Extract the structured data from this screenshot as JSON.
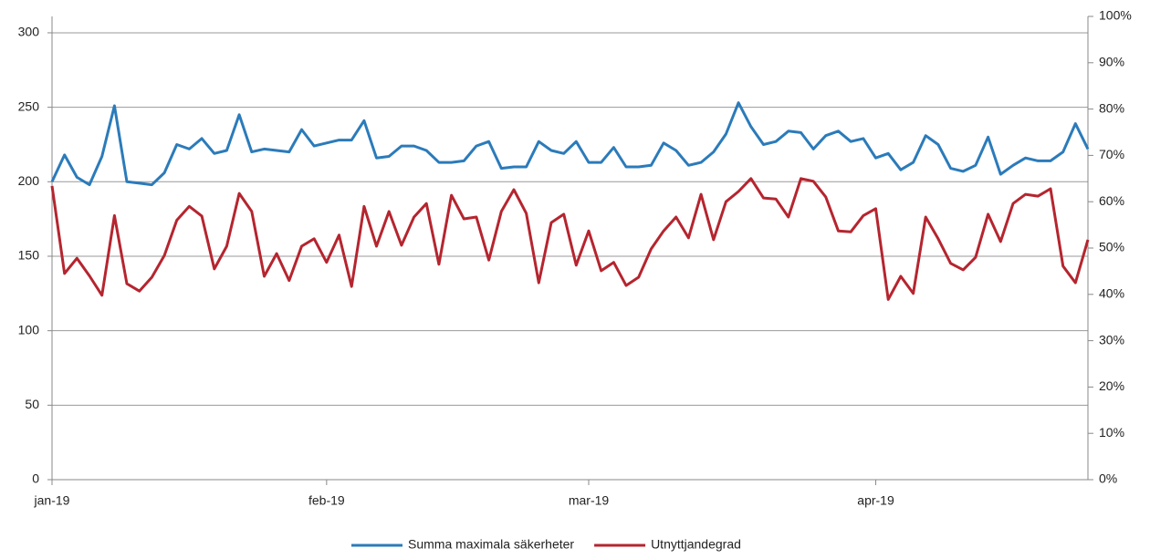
{
  "chart_data": {
    "type": "line",
    "categories": [
      "jan-19",
      null,
      null,
      null,
      null,
      null,
      null,
      null,
      null,
      null,
      null,
      null,
      null,
      null,
      null,
      null,
      null,
      null,
      null,
      null,
      null,
      null,
      "feb-19",
      null,
      null,
      null,
      null,
      null,
      null,
      null,
      null,
      null,
      null,
      null,
      null,
      null,
      null,
      null,
      null,
      null,
      null,
      null,
      null,
      "mar-19",
      null,
      null,
      null,
      null,
      null,
      null,
      null,
      null,
      null,
      null,
      null,
      null,
      null,
      null,
      null,
      null,
      null,
      null,
      null,
      null,
      null,
      null,
      "apr-19",
      null,
      null,
      null,
      null,
      null,
      null,
      null,
      null,
      null,
      null,
      null,
      null,
      null,
      null,
      null,
      null,
      null
    ],
    "series": [
      {
        "name": "Summa maximala säkerheter",
        "color": "#2b7bba",
        "values": [
          200,
          218,
          203,
          198,
          217,
          251,
          200,
          199,
          198,
          206,
          225,
          222,
          229,
          219,
          221,
          245,
          220,
          222,
          221,
          220,
          235,
          224,
          226,
          228,
          228,
          241,
          216,
          217,
          224,
          224,
          221,
          213,
          213,
          214,
          224,
          227,
          209,
          210,
          210,
          227,
          221,
          219,
          227,
          213,
          213,
          223,
          210,
          210,
          211,
          226,
          221,
          211,
          213,
          220,
          232,
          253,
          237,
          225,
          227,
          234,
          233,
          222,
          231,
          234,
          227,
          229,
          216,
          219,
          208,
          213,
          231,
          225,
          209,
          207,
          211,
          230,
          205,
          211,
          216,
          214,
          214,
          220,
          239,
          222
        ]
      },
      {
        "name": "Utnyttjandegrad",
        "color": "#b5252f",
        "axis": "y2",
        "values": [
          63.4,
          44.5,
          47.8,
          44,
          39.8,
          57,
          42.3,
          40.7,
          43.7,
          48.4,
          56,
          59,
          56.9,
          45.5,
          50.4,
          61.8,
          57.9,
          43.9,
          48.8,
          43,
          50.4,
          52,
          46.9,
          52.8,
          41.7,
          59,
          50.4,
          57.9,
          50.6,
          56.7,
          59.6,
          46.5,
          61.4,
          56.3,
          56.7,
          47.4,
          57.9,
          62.6,
          57.5,
          42.5,
          55.5,
          57.3,
          46.3,
          53.7,
          45.1,
          46.9,
          41.9,
          43.7,
          49.8,
          53.7,
          56.7,
          52.2,
          61.6,
          51.8,
          60,
          62.2,
          65,
          60.8,
          60.6,
          56.7,
          65,
          64.4,
          61,
          53.7,
          53.5,
          57,
          58.5,
          38.9,
          43.9,
          40.2,
          56.7,
          52,
          46.7,
          45.3,
          48,
          57.3,
          51.4,
          59.6,
          61.6,
          61.2,
          62.8,
          46.1,
          42.5,
          51.8
        ]
      }
    ],
    "ylim": [
      0,
      311
    ],
    "yticks": [
      0,
      50,
      100,
      150,
      200,
      250,
      300
    ],
    "y2lim": [
      0,
      100
    ],
    "y2ticks": [
      {
        "value": 0,
        "label": "0%"
      },
      {
        "value": 10,
        "label": "10%"
      },
      {
        "value": 20,
        "label": "20%"
      },
      {
        "value": 30,
        "label": "30%"
      },
      {
        "value": 40,
        "label": "40%"
      },
      {
        "value": 50,
        "label": "50%"
      },
      {
        "value": 60,
        "label": "60%"
      },
      {
        "value": 70,
        "label": "70%"
      },
      {
        "value": 80,
        "label": "80%"
      },
      {
        "value": 90,
        "label": "90%"
      },
      {
        "value": 100,
        "label": "100%"
      }
    ],
    "grid": true,
    "legend": "bottom"
  }
}
